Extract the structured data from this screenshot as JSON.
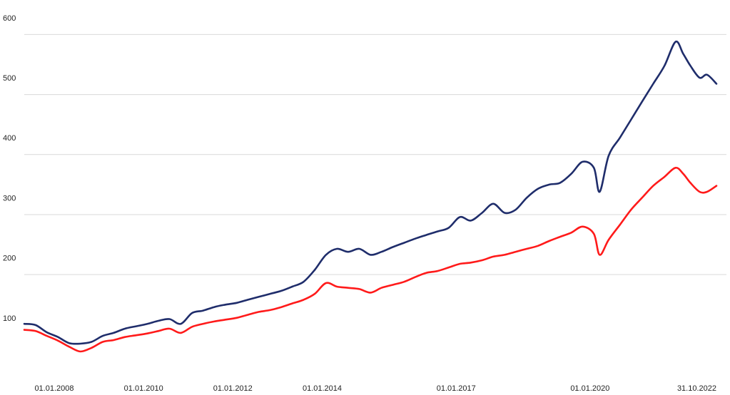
{
  "chart_data": {
    "type": "line",
    "title": "",
    "xlabel": "",
    "ylabel": "",
    "ylim": [
      0,
      620
    ],
    "grid": true,
    "yticks": [
      100,
      200,
      300,
      400,
      500,
      600
    ],
    "ytick_labels": [
      "100",
      "200",
      "300",
      "400",
      "500",
      "600"
    ],
    "xticks": [
      "01.01.2008",
      "01.01.2010",
      "01.01.2012",
      "01.01.2014",
      "01.01.2017",
      "01.01.2020",
      "31.10.2022"
    ],
    "xtick_labels": [
      "01.01.2008",
      "01.01.2010",
      "01.01.2012",
      "01.01.2014",
      "01.01.2017",
      "01.01.2020",
      "31.10.2022"
    ],
    "x_range": [
      "2007-05-01",
      "2022-10-31"
    ],
    "series": [
      {
        "color": "#1f2d6b",
        "x": [
          "2007-05-01",
          "2007-08-01",
          "2007-11-01",
          "2008-02-01",
          "2008-05-01",
          "2008-08-01",
          "2008-11-01",
          "2009-02-01",
          "2009-05-01",
          "2009-08-01",
          "2009-11-01",
          "2010-02-01",
          "2010-05-01",
          "2010-08-01",
          "2010-11-01",
          "2011-02-01",
          "2011-05-01",
          "2011-08-01",
          "2011-11-01",
          "2012-02-01",
          "2012-05-01",
          "2012-08-01",
          "2012-11-01",
          "2013-02-01",
          "2013-05-01",
          "2013-08-01",
          "2013-11-01",
          "2014-02-01",
          "2014-05-01",
          "2014-08-01",
          "2014-11-01",
          "2015-02-01",
          "2015-05-01",
          "2015-08-01",
          "2015-11-01",
          "2016-02-01",
          "2016-05-01",
          "2016-08-01",
          "2016-11-01",
          "2017-02-01",
          "2017-05-01",
          "2017-08-01",
          "2017-11-01",
          "2018-02-01",
          "2018-05-01",
          "2018-08-01",
          "2018-11-01",
          "2019-02-01",
          "2019-05-01",
          "2019-08-01",
          "2019-11-01",
          "2020-02-01",
          "2020-03-20",
          "2020-06-01",
          "2020-09-01",
          "2020-12-01",
          "2021-03-01",
          "2021-06-01",
          "2021-09-01",
          "2021-12-01",
          "2022-02-01",
          "2022-04-01",
          "2022-06-15",
          "2022-08-15",
          "2022-10-31"
        ],
        "values": [
          90,
          88,
          76,
          68,
          58,
          57,
          60,
          70,
          75,
          82,
          86,
          90,
          95,
          98,
          90,
          108,
          112,
          118,
          122,
          125,
          130,
          135,
          140,
          145,
          152,
          160,
          180,
          205,
          215,
          210,
          215,
          205,
          210,
          218,
          225,
          232,
          238,
          244,
          250,
          268,
          262,
          275,
          290,
          275,
          280,
          300,
          315,
          322,
          325,
          340,
          360,
          350,
          310,
          370,
          400,
          430,
          460,
          490,
          520,
          560,
          540,
          520,
          500,
          505,
          490
        ]
      },
      {
        "color": "#ff1a1a",
        "x": [
          "2007-05-01",
          "2007-08-01",
          "2007-11-01",
          "2008-02-01",
          "2008-05-01",
          "2008-08-01",
          "2008-11-01",
          "2009-02-01",
          "2009-05-01",
          "2009-08-01",
          "2009-11-01",
          "2010-02-01",
          "2010-05-01",
          "2010-08-01",
          "2010-11-01",
          "2011-02-01",
          "2011-05-01",
          "2011-08-01",
          "2011-11-01",
          "2012-02-01",
          "2012-05-01",
          "2012-08-01",
          "2012-11-01",
          "2013-02-01",
          "2013-05-01",
          "2013-08-01",
          "2013-11-01",
          "2014-02-01",
          "2014-05-01",
          "2014-08-01",
          "2014-11-01",
          "2015-02-01",
          "2015-05-01",
          "2015-08-01",
          "2015-11-01",
          "2016-02-01",
          "2016-05-01",
          "2016-08-01",
          "2016-11-01",
          "2017-02-01",
          "2017-05-01",
          "2017-08-01",
          "2017-11-01",
          "2018-02-01",
          "2018-05-01",
          "2018-08-01",
          "2018-11-01",
          "2019-02-01",
          "2019-05-01",
          "2019-08-01",
          "2019-11-01",
          "2020-02-01",
          "2020-03-20",
          "2020-06-01",
          "2020-09-01",
          "2020-12-01",
          "2021-03-01",
          "2021-06-01",
          "2021-09-01",
          "2021-12-01",
          "2022-02-01",
          "2022-04-01",
          "2022-06-15",
          "2022-08-15",
          "2022-10-31"
        ],
        "values": [
          80,
          78,
          70,
          62,
          52,
          44,
          50,
          60,
          63,
          68,
          71,
          74,
          78,
          82,
          75,
          85,
          90,
          94,
          97,
          100,
          105,
          110,
          113,
          118,
          124,
          130,
          140,
          158,
          152,
          150,
          148,
          142,
          150,
          155,
          160,
          168,
          175,
          178,
          184,
          190,
          192,
          196,
          202,
          205,
          210,
          215,
          220,
          228,
          235,
          242,
          252,
          240,
          205,
          230,
          255,
          280,
          300,
          320,
          335,
          350,
          340,
          325,
          310,
          310,
          320
        ]
      }
    ]
  }
}
